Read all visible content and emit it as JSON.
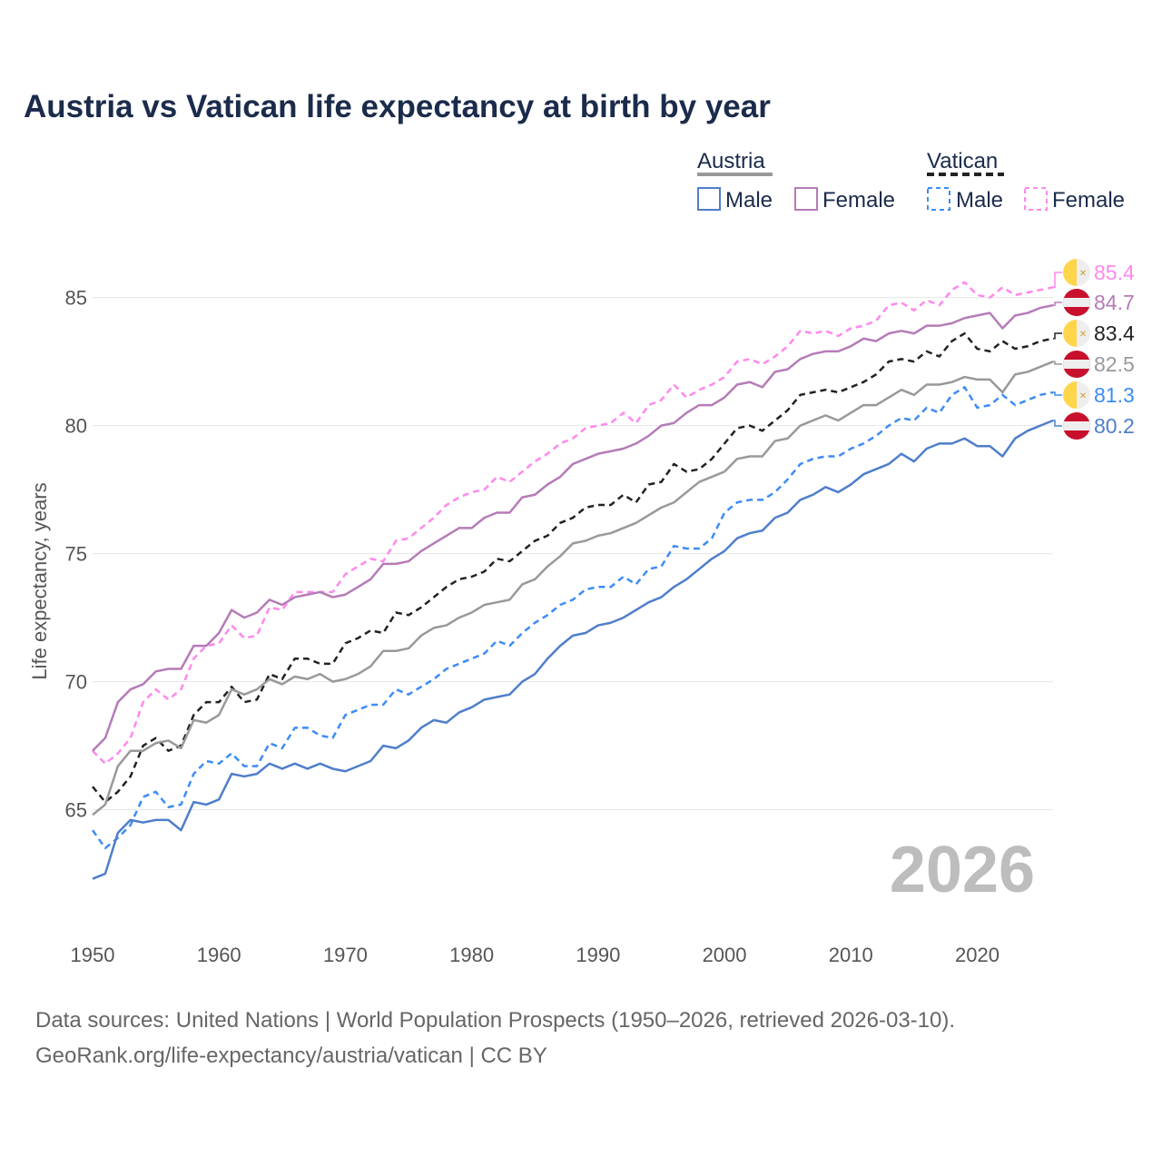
{
  "chart_data": {
    "type": "line",
    "title": "Austria vs Vatican life expectancy at birth by year",
    "ylabel": "Life expectancy, years",
    "xlabel": "",
    "x_start": 1950,
    "xlim": [
      1950,
      2026
    ],
    "ylim": [
      60.8,
      87.4
    ],
    "x_ticks": [
      1950,
      1960,
      1970,
      1980,
      1990,
      2000,
      2010,
      2020
    ],
    "y_ticks": [
      65,
      70,
      75,
      80,
      85
    ],
    "grid": true,
    "watermark_year": "2026",
    "legend": {
      "placement": "top-right",
      "groups": [
        {
          "name": "Austria",
          "items": [
            "Male",
            "Female"
          ]
        },
        {
          "name": "Vatican",
          "items": [
            "Male",
            "Female"
          ]
        }
      ]
    },
    "series": [
      {
        "name": "Vatican Female",
        "country": "Vatican",
        "color": "#ff88ee",
        "dashed": true,
        "end_label": "85.4",
        "values": [
          67.3,
          66.8,
          67.2,
          67.8,
          69.2,
          69.7,
          69.3,
          69.7,
          70.9,
          71.4,
          71.5,
          72.2,
          71.7,
          71.8,
          72.9,
          72.8,
          73.5,
          73.5,
          73.5,
          73.5,
          74.2,
          74.5,
          74.8,
          74.7,
          75.5,
          75.6,
          76.0,
          76.4,
          76.9,
          77.2,
          77.4,
          77.5,
          78.0,
          77.8,
          78.2,
          78.6,
          78.9,
          79.3,
          79.5,
          79.9,
          80.0,
          80.1,
          80.5,
          80.1,
          80.8,
          81.0,
          81.6,
          81.1,
          81.4,
          81.6,
          81.9,
          82.5,
          82.6,
          82.4,
          82.7,
          83.1,
          83.7,
          83.6,
          83.7,
          83.5,
          83.8,
          83.9,
          84.1,
          84.7,
          84.8,
          84.5,
          84.9,
          84.7,
          85.3,
          85.6,
          85.1,
          85.0,
          85.4,
          85.1,
          85.2,
          85.3,
          85.4
        ]
      },
      {
        "name": "Austria Female",
        "country": "Austria",
        "color": "#b57bb8",
        "dashed": false,
        "end_label": "84.7",
        "values": [
          67.3,
          67.8,
          69.2,
          69.7,
          69.9,
          70.4,
          70.5,
          70.5,
          71.4,
          71.4,
          71.9,
          72.8,
          72.5,
          72.7,
          73.2,
          73.0,
          73.3,
          73.4,
          73.5,
          73.3,
          73.4,
          73.7,
          74.0,
          74.6,
          74.6,
          74.7,
          75.1,
          75.4,
          75.7,
          76.0,
          76.0,
          76.4,
          76.6,
          76.6,
          77.2,
          77.3,
          77.7,
          78.0,
          78.5,
          78.7,
          78.9,
          79.0,
          79.1,
          79.3,
          79.6,
          80.0,
          80.1,
          80.5,
          80.8,
          80.8,
          81.1,
          81.6,
          81.7,
          81.5,
          82.1,
          82.2,
          82.6,
          82.8,
          82.9,
          82.9,
          83.1,
          83.4,
          83.3,
          83.6,
          83.7,
          83.6,
          83.9,
          83.9,
          84.0,
          84.2,
          84.3,
          84.4,
          83.8,
          84.3,
          84.4,
          84.6,
          84.7
        ]
      },
      {
        "name": "Vatican Total",
        "country": "Vatican",
        "color": "#222222",
        "dashed": true,
        "end_label": "83.4",
        "values": [
          65.9,
          65.3,
          65.7,
          66.3,
          67.5,
          67.8,
          67.3,
          67.5,
          68.7,
          69.2,
          69.2,
          69.8,
          69.2,
          69.3,
          70.3,
          70.1,
          70.9,
          70.9,
          70.7,
          70.7,
          71.5,
          71.7,
          72.0,
          71.9,
          72.7,
          72.6,
          72.9,
          73.3,
          73.7,
          74.0,
          74.1,
          74.3,
          74.8,
          74.7,
          75.1,
          75.5,
          75.7,
          76.2,
          76.4,
          76.8,
          76.9,
          76.9,
          77.3,
          77.0,
          77.7,
          77.8,
          78.5,
          78.2,
          78.3,
          78.7,
          79.3,
          79.9,
          80.0,
          79.8,
          80.2,
          80.6,
          81.2,
          81.3,
          81.4,
          81.3,
          81.5,
          81.7,
          82.0,
          82.5,
          82.6,
          82.5,
          82.9,
          82.7,
          83.3,
          83.6,
          83.0,
          82.9,
          83.3,
          83.0,
          83.1,
          83.3,
          83.4
        ]
      },
      {
        "name": "Austria Total",
        "country": "Austria",
        "color": "#999999",
        "dashed": false,
        "end_label": "82.5",
        "values": [
          64.8,
          65.2,
          66.7,
          67.3,
          67.3,
          67.6,
          67.7,
          67.4,
          68.5,
          68.4,
          68.7,
          69.7,
          69.5,
          69.7,
          70.1,
          69.9,
          70.2,
          70.1,
          70.3,
          70.0,
          70.1,
          70.3,
          70.6,
          71.2,
          71.2,
          71.3,
          71.8,
          72.1,
          72.2,
          72.5,
          72.7,
          73.0,
          73.1,
          73.2,
          73.8,
          74.0,
          74.5,
          74.9,
          75.4,
          75.5,
          75.7,
          75.8,
          76.0,
          76.2,
          76.5,
          76.8,
          77.0,
          77.4,
          77.8,
          78.0,
          78.2,
          78.7,
          78.8,
          78.8,
          79.4,
          79.5,
          80.0,
          80.2,
          80.4,
          80.2,
          80.5,
          80.8,
          80.8,
          81.1,
          81.4,
          81.2,
          81.6,
          81.6,
          81.7,
          81.9,
          81.8,
          81.8,
          81.3,
          82.0,
          82.1,
          82.3,
          82.5
        ]
      },
      {
        "name": "Vatican Male",
        "country": "Vatican",
        "color": "#3d8cf5",
        "dashed": true,
        "end_label": "81.3",
        "values": [
          64.2,
          63.5,
          63.9,
          64.4,
          65.5,
          65.7,
          65.1,
          65.2,
          66.4,
          66.9,
          66.8,
          67.2,
          66.7,
          66.7,
          67.6,
          67.4,
          68.2,
          68.2,
          67.9,
          67.8,
          68.7,
          68.9,
          69.1,
          69.1,
          69.7,
          69.5,
          69.8,
          70.1,
          70.5,
          70.7,
          70.9,
          71.1,
          71.6,
          71.4,
          71.9,
          72.3,
          72.6,
          73.0,
          73.2,
          73.6,
          73.7,
          73.7,
          74.1,
          73.8,
          74.4,
          74.5,
          75.3,
          75.2,
          75.2,
          75.6,
          76.6,
          77.0,
          77.1,
          77.1,
          77.4,
          77.9,
          78.5,
          78.7,
          78.8,
          78.8,
          79.1,
          79.3,
          79.6,
          80.0,
          80.3,
          80.2,
          80.7,
          80.5,
          81.2,
          81.5,
          80.7,
          80.8,
          81.2,
          80.8,
          81.0,
          81.2,
          81.3
        ]
      },
      {
        "name": "Austria Male",
        "country": "Austria",
        "color": "#4f7ecb",
        "dashed": false,
        "end_label": "80.2",
        "values": [
          62.3,
          62.5,
          64.1,
          64.6,
          64.5,
          64.6,
          64.6,
          64.2,
          65.3,
          65.2,
          65.4,
          66.4,
          66.3,
          66.4,
          66.8,
          66.6,
          66.8,
          66.6,
          66.8,
          66.6,
          66.5,
          66.7,
          66.9,
          67.5,
          67.4,
          67.7,
          68.2,
          68.5,
          68.4,
          68.8,
          69.0,
          69.3,
          69.4,
          69.5,
          70.0,
          70.3,
          70.9,
          71.4,
          71.8,
          71.9,
          72.2,
          72.3,
          72.5,
          72.8,
          73.1,
          73.3,
          73.7,
          74.0,
          74.4,
          74.8,
          75.1,
          75.6,
          75.8,
          75.9,
          76.4,
          76.6,
          77.1,
          77.3,
          77.6,
          77.4,
          77.7,
          78.1,
          78.3,
          78.5,
          78.9,
          78.6,
          79.1,
          79.3,
          79.3,
          79.5,
          79.2,
          79.2,
          78.8,
          79.5,
          79.8,
          80.0,
          80.2
        ]
      }
    ]
  },
  "footer": {
    "line1": "Data sources: United Nations | World Population Prospects (1950–2026, retrieved 2026-03-10).",
    "line2": "GeoRank.org/life-expectancy/austria/vatican | CC BY"
  }
}
